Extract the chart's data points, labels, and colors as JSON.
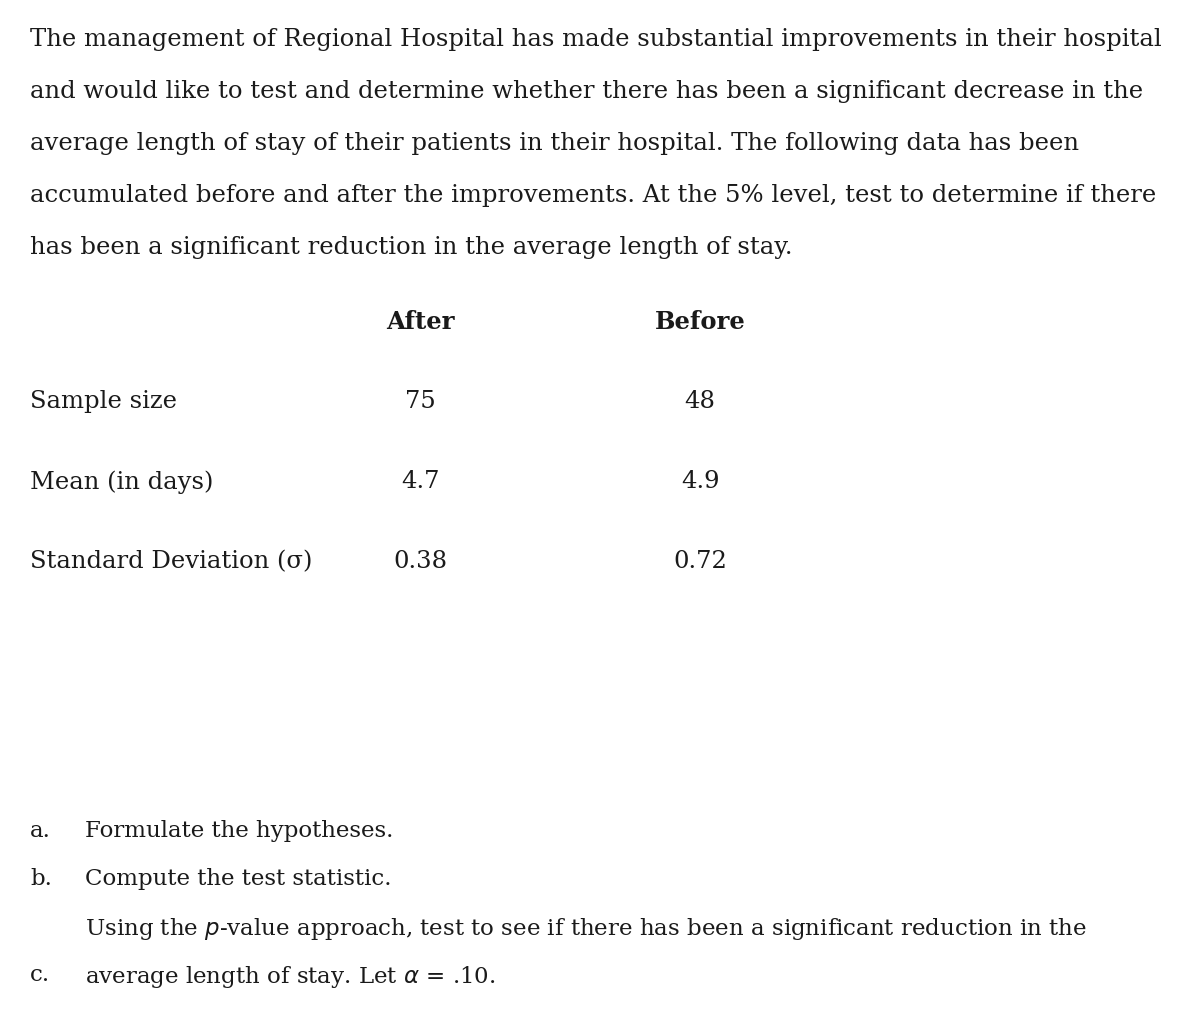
{
  "background_color": "#ffffff",
  "text_color": "#1a1a1a",
  "para_lines": [
    "The management of Regional Hospital has made substantial improvements in their hospital",
    "and would like to test and determine whether there has been a significant decrease in the",
    "average length of stay of their patients in their hospital. The following data has been",
    "accumulated before and after the improvements. At the 5% level, test to determine if there",
    "has been a significant reduction in the average length of stay."
  ],
  "col_after_label": "After",
  "col_before_label": "Before",
  "table_rows": [
    [
      "Sample size",
      "75",
      "48"
    ],
    [
      "Mean (in days)",
      "4.7",
      "4.9"
    ],
    [
      "Standard Deviation (σ)",
      "0.38",
      "0.72"
    ]
  ],
  "q_a_label": "a.",
  "q_a_text": "Formulate the hypotheses.",
  "q_b_label": "b.",
  "q_b_text": "Compute the test statistic.",
  "q_c_label": "c.",
  "q_c_line1": "Using the $p$-value approach, test to see if there has been a significant reduction in the",
  "q_c_line2": "average length of stay. Let $\\alpha$ = .10.",
  "font_size": 17.5,
  "font_size_q": 16.5
}
